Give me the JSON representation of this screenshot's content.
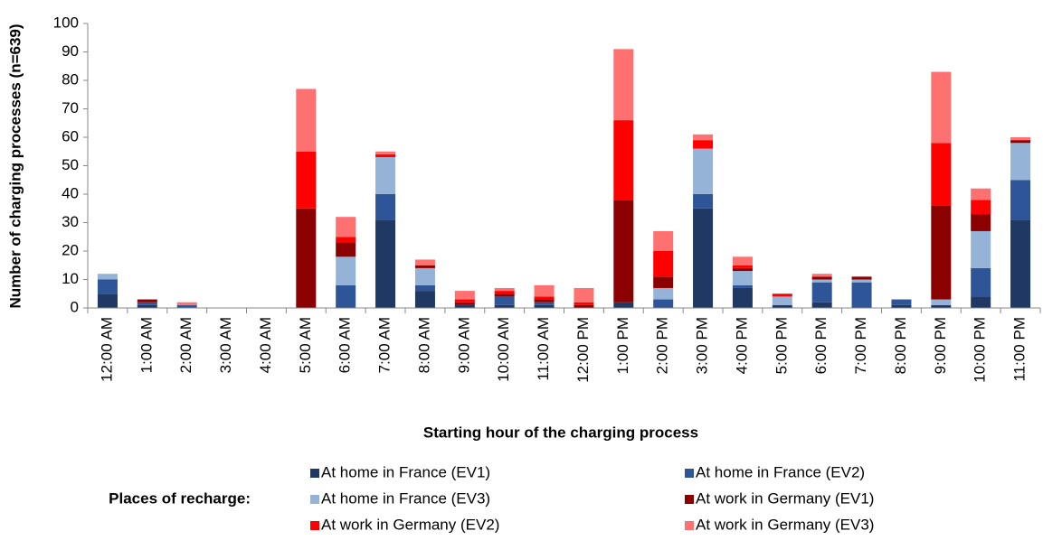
{
  "chart_data": {
    "type": "stacked_bar",
    "y_label": "Number of charging processes (n=639)",
    "x_label": "Starting hour of the charging process",
    "legend_title": "Places of recharge:",
    "categories": [
      "12:00 AM",
      "1:00 AM",
      "2:00 AM",
      "3:00 AM",
      "4:00 AM",
      "5:00 AM",
      "6:00 AM",
      "7:00 AM",
      "8:00 AM",
      "9:00 AM",
      "10:00 AM",
      "11:00 AM",
      "12:00 PM",
      "1:00 PM",
      "2:00 PM",
      "3:00 PM",
      "4:00 PM",
      "5:00 PM",
      "6:00 PM",
      "7:00 PM",
      "8:00 PM",
      "9:00 PM",
      "10:00 PM",
      "11:00 PM"
    ],
    "series": [
      {
        "name": "At home in France (EV1)",
        "color": "#1f3864",
        "values": [
          5,
          1,
          0,
          0,
          0,
          0,
          0,
          31,
          6,
          1,
          1,
          1,
          0,
          2,
          0,
          35,
          7,
          1,
          2,
          0,
          1,
          1,
          4,
          31
        ]
      },
      {
        "name": "At home in France (EV2)",
        "color": "#2e5597",
        "values": [
          5,
          1,
          1,
          0,
          0,
          0,
          8,
          9,
          2,
          0,
          3,
          1,
          0,
          0,
          3,
          5,
          1,
          0,
          7,
          9,
          2,
          0,
          10,
          14
        ]
      },
      {
        "name": "At home in France (EV3)",
        "color": "#95b3d7",
        "values": [
          2,
          0,
          0,
          0,
          0,
          0,
          10,
          13,
          6,
          0,
          0,
          0,
          0,
          0,
          4,
          16,
          5,
          3,
          1,
          1,
          0,
          2,
          13,
          13
        ]
      },
      {
        "name": "At work in Germany (EV1)",
        "color": "#8b0000",
        "values": [
          0,
          1,
          0,
          0,
          0,
          35,
          5,
          0,
          1,
          1,
          1,
          1,
          1,
          36,
          4,
          0,
          1,
          0,
          1,
          1,
          0,
          33,
          6,
          1
        ]
      },
      {
        "name": "At work in Germany (EV2)",
        "color": "#ff0000",
        "values": [
          0,
          0,
          0,
          0,
          0,
          20,
          2,
          1,
          0,
          1,
          1,
          1,
          1,
          28,
          9,
          3,
          1,
          1,
          0,
          0,
          0,
          22,
          5,
          0
        ]
      },
      {
        "name": "At work in Germany (EV3)",
        "color": "#ff7070",
        "values": [
          0,
          0,
          1,
          0,
          0,
          22,
          7,
          1,
          2,
          3,
          1,
          4,
          5,
          25,
          7,
          2,
          3,
          0,
          1,
          0,
          0,
          25,
          4,
          1
        ]
      }
    ],
    "ylim": [
      0,
      100
    ],
    "yticks": [
      0,
      10,
      20,
      30,
      40,
      50,
      60,
      70,
      80,
      90,
      100
    ],
    "grid": false
  }
}
